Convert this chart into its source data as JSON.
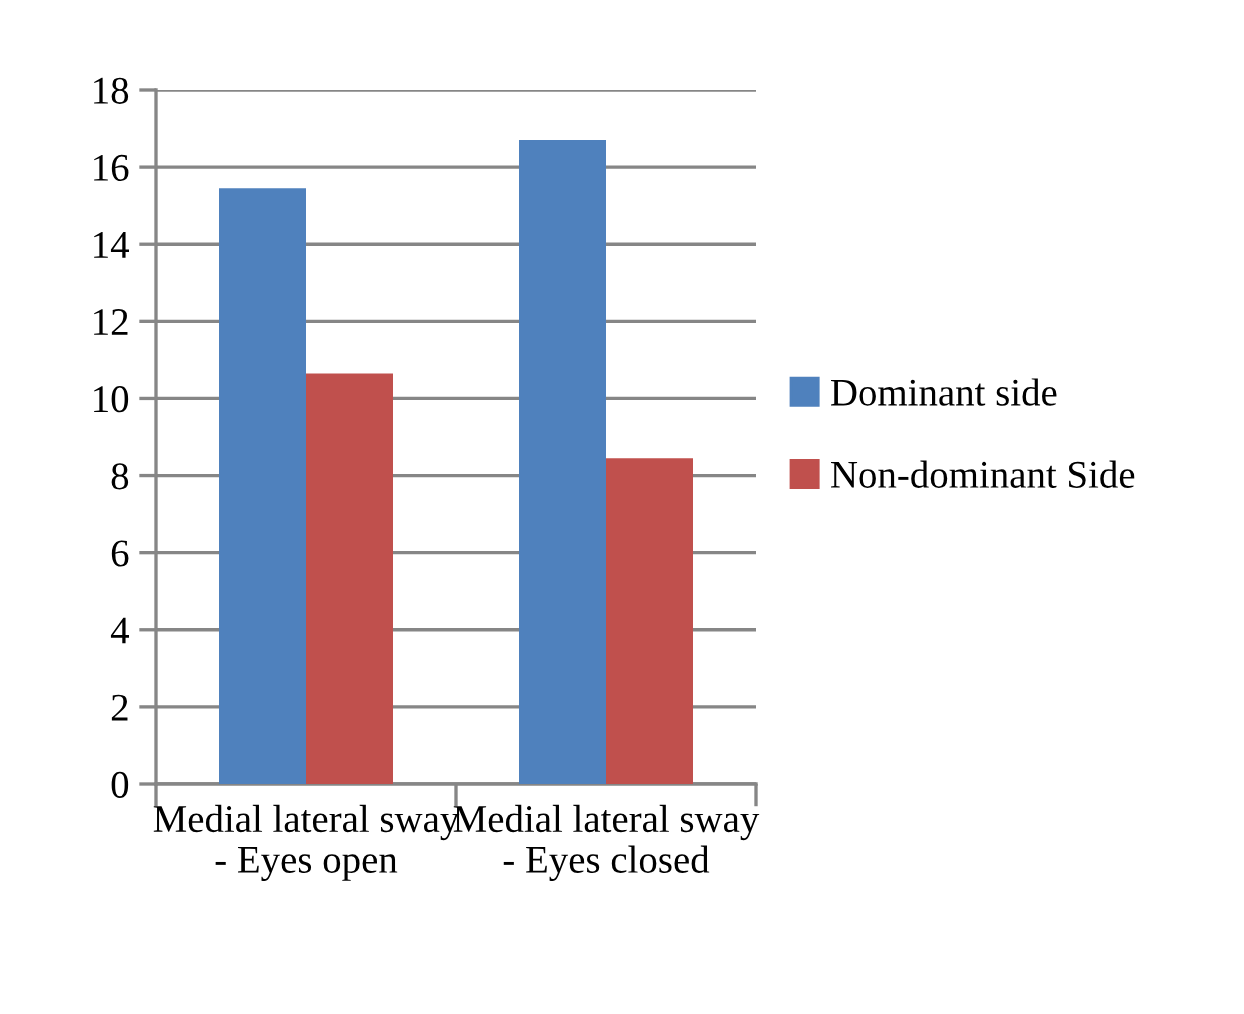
{
  "chart_data": {
    "type": "bar",
    "categories": [
      "Medial lateral sway - Eyes open",
      "Medial lateral sway - Eyes closed"
    ],
    "series": [
      {
        "name": "Dominant side",
        "color": "#4f81bd",
        "values": [
          15.45,
          16.7
        ]
      },
      {
        "name": "Non-dominant Side",
        "color": "#c0504d",
        "values": [
          10.65,
          8.45
        ]
      }
    ],
    "ylim": [
      0,
      18
    ],
    "yticks": [
      0,
      2,
      4,
      6,
      8,
      10,
      12,
      14,
      16,
      18
    ],
    "grid": "y",
    "legend": "right"
  }
}
